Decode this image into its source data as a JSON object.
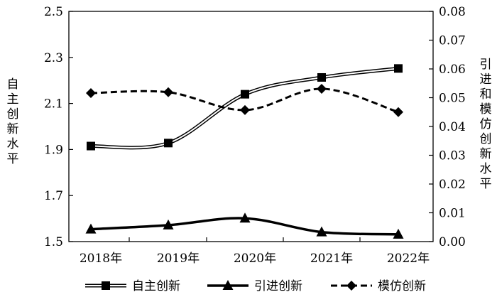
{
  "chart_data": {
    "type": "line",
    "categories": [
      "2018年",
      "2019年",
      "2020年",
      "2021年",
      "2022年"
    ],
    "ylabel_left": "自主创新水平",
    "ylabel_right": "引进和模仿创新水平",
    "ylim_left": [
      1.5,
      2.5
    ],
    "yticks_left": [
      "1.5",
      "1.7",
      "1.9",
      "2.1",
      "2.3",
      "2.5"
    ],
    "ylim_right": [
      0,
      0.08
    ],
    "yticks_right": [
      "0.00",
      "0.01",
      "0.02",
      "0.03",
      "0.04",
      "0.05",
      "0.06",
      "0.07",
      "0.08"
    ],
    "grid": false,
    "legend_position": "bottom",
    "series": [
      {
        "name": "自主创新",
        "axis": "left",
        "marker": "square",
        "line": "double",
        "values": [
          1.915,
          1.928,
          2.14,
          2.213,
          2.252
        ]
      },
      {
        "name": "引进创新",
        "axis": "right",
        "marker": "triangle",
        "line": "solid",
        "values": [
          0.0043,
          0.0057,
          0.0081,
          0.0033,
          0.0025
        ]
      },
      {
        "name": "模仿创新",
        "axis": "right",
        "marker": "diamond",
        "line": "dashed",
        "values": [
          0.0516,
          0.0519,
          0.0457,
          0.0531,
          0.045
        ]
      }
    ]
  }
}
